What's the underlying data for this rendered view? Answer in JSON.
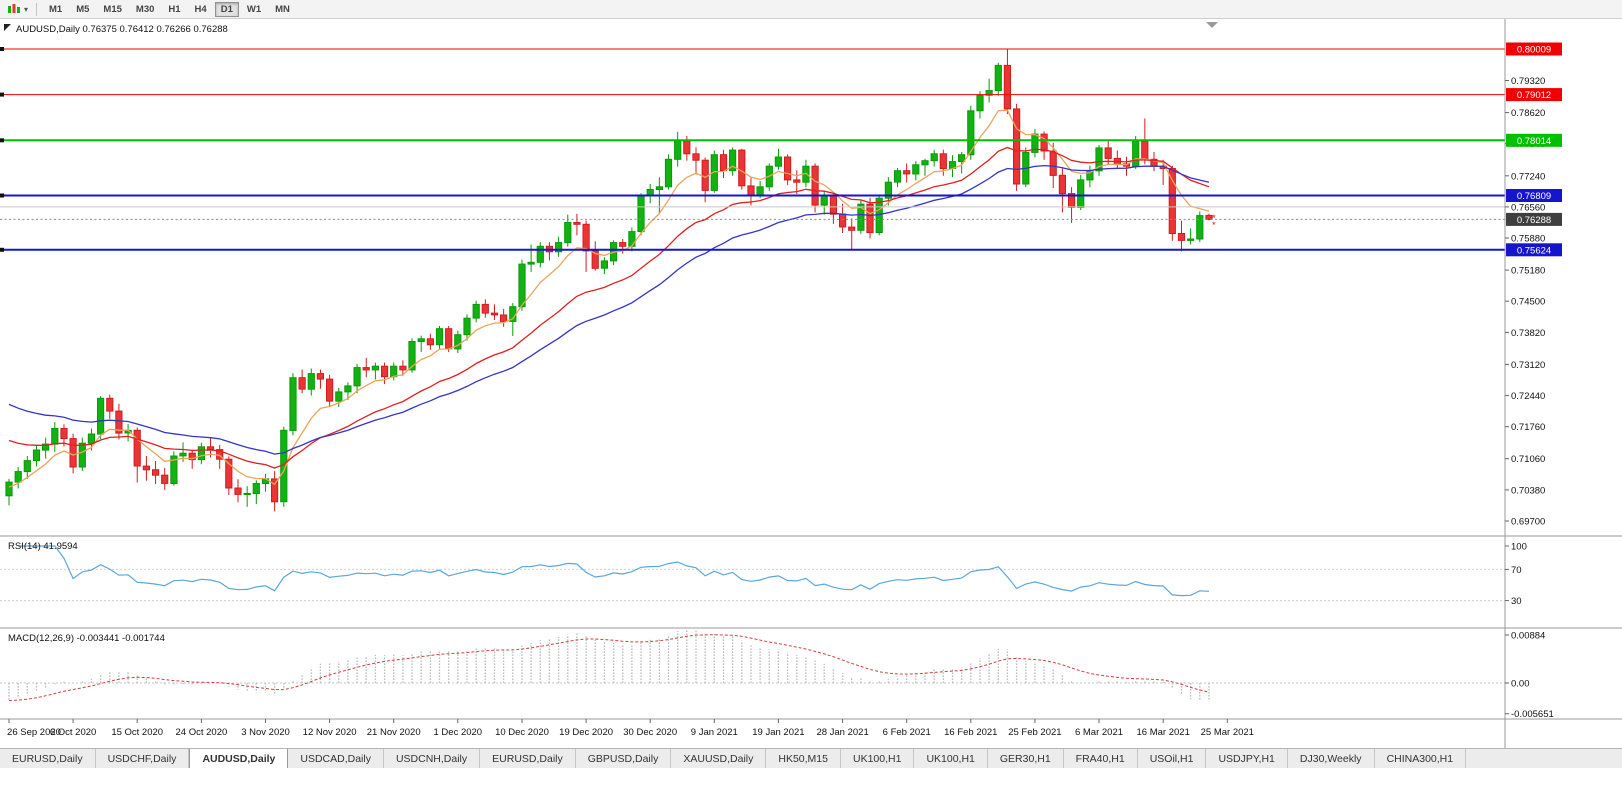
{
  "toolbar": {
    "caret_glyph": "▾",
    "timeframes": [
      "M1",
      "M5",
      "M15",
      "M30",
      "H1",
      "H4",
      "D1",
      "W1",
      "MN"
    ],
    "active_timeframe": "D1"
  },
  "chart_header": {
    "symbol_period": "AUDUSD,Daily",
    "ohlc": "0.76375 0.76412 0.76266 0.76288"
  },
  "colors": {
    "up": "#12b212",
    "up_border": "#089a08",
    "down": "#e93535",
    "down_border": "#cf1d1d",
    "ma_fast": "#eaa558",
    "ma_mid": "#e02020",
    "ma_slow": "#3434c8",
    "rsi": "#5aa7dc",
    "macd_hist": "#bdbdbd",
    "macd_signal": "#d04040",
    "red_line": "#f00000",
    "green_line": "#00c000",
    "blue_line": "#1515cc",
    "gray_line": "#c8c8c8",
    "badge_current": "#3f3f3f",
    "panel_sep": "#9a9a9a",
    "axis_text": "#111111",
    "bid_line": "#8a8a8a"
  },
  "chart_data": {
    "type": "candlestick",
    "symbol": "AUDUSD",
    "timeframe": "Daily",
    "current_ohlc": {
      "open": "0.76375",
      "high": "0.76412",
      "low": "0.76266",
      "close": "0.76288"
    },
    "price_ticks": [
      "0.79320",
      "0.78620",
      "0.77940",
      "0.77240",
      "0.76560",
      "0.75880",
      "0.75180",
      "0.74500",
      "0.73820",
      "0.73120",
      "0.72440",
      "0.71760",
      "0.71060",
      "0.70380",
      "0.69700"
    ],
    "date_labels": [
      "26 Sep 2020",
      "6 Oct 2020",
      "15 Oct 2020",
      "24 Oct 2020",
      "3 Nov 2020",
      "12 Nov 2020",
      "21 Nov 2020",
      "1 Dec 2020",
      "10 Dec 2020",
      "19 Dec 2020",
      "30 Dec 2020",
      "9 Jan 2021",
      "19 Jan 2021",
      "28 Jan 2021",
      "6 Feb 2021",
      "16 Feb 2021",
      "25 Feb 2021",
      "6 Mar 2021",
      "16 Mar 2021",
      "25 Mar 2021"
    ],
    "horizontal_lines": [
      {
        "label": "0.80009",
        "price": 0.80009,
        "color_key": "red_line",
        "width": 1
      },
      {
        "label": "0.79012",
        "price": 0.79012,
        "color_key": "red_line",
        "width": 1
      },
      {
        "label": "0.78014",
        "price": 0.78014,
        "color_key": "green_line",
        "width": 2
      },
      {
        "label": "0.76809",
        "price": 0.76809,
        "color_key": "blue_line",
        "width": 2
      },
      {
        "label": "0.75624",
        "price": 0.75624,
        "color_key": "blue_line",
        "width": 2
      },
      {
        "price": 0.7656,
        "color_key": "gray_line",
        "width": 1
      }
    ],
    "current_price": {
      "label": "0.76288",
      "price": 0.76288
    },
    "moving_averages": [
      {
        "period": 7,
        "seed": 0.704,
        "color_key": "ma_fast"
      },
      {
        "period": 21,
        "seed": 0.7155,
        "color_key": "ma_mid"
      },
      {
        "period": 34,
        "seed": 0.7235,
        "color_key": "ma_slow"
      }
    ],
    "rsi": {
      "name": "RSI(14)",
      "value_text": "41.9594",
      "period": 14,
      "scale_labels": [
        "100",
        "70",
        "30"
      ],
      "level_lines": [
        70,
        30
      ]
    },
    "macd": {
      "name": "MACD(12,26,9)",
      "values_text": "-0.003441 -0.001744",
      "fast": 12,
      "slow": 26,
      "signal": 9,
      "slow_seed": 0.709,
      "scale_labels": [
        "0.00884",
        "0.00",
        "-0.005651"
      ]
    },
    "candles": [
      [
        0.7025,
        0.7062,
        0.7004,
        0.7055
      ],
      [
        0.7055,
        0.7088,
        0.7041,
        0.7078
      ],
      [
        0.7078,
        0.7112,
        0.7062,
        0.7102
      ],
      [
        0.7102,
        0.7136,
        0.7089,
        0.7125
      ],
      [
        0.7125,
        0.7152,
        0.7106,
        0.7138
      ],
      [
        0.7138,
        0.7186,
        0.7121,
        0.7172
      ],
      [
        0.7172,
        0.7181,
        0.7133,
        0.715
      ],
      [
        0.715,
        0.7161,
        0.7074,
        0.7088
      ],
      [
        0.7088,
        0.7152,
        0.7079,
        0.714
      ],
      [
        0.714,
        0.7172,
        0.7124,
        0.716
      ],
      [
        0.716,
        0.7243,
        0.7149,
        0.7238
      ],
      [
        0.7238,
        0.7246,
        0.7193,
        0.721
      ],
      [
        0.721,
        0.7226,
        0.7148,
        0.7162
      ],
      [
        0.7162,
        0.7182,
        0.7144,
        0.7168
      ],
      [
        0.7168,
        0.7174,
        0.7054,
        0.709
      ],
      [
        0.709,
        0.7112,
        0.7058,
        0.7082
      ],
      [
        0.7082,
        0.7101,
        0.7051,
        0.707
      ],
      [
        0.707,
        0.7086,
        0.7038,
        0.7052
      ],
      [
        0.7052,
        0.7122,
        0.7047,
        0.7112
      ],
      [
        0.7112,
        0.7142,
        0.7099,
        0.7118
      ],
      [
        0.7118,
        0.7126,
        0.7084,
        0.7104
      ],
      [
        0.7104,
        0.7141,
        0.7094,
        0.7132
      ],
      [
        0.7132,
        0.7151,
        0.7109,
        0.7126
      ],
      [
        0.7126,
        0.7136,
        0.7084,
        0.7105
      ],
      [
        0.7105,
        0.7111,
        0.7027,
        0.7042
      ],
      [
        0.7042,
        0.7061,
        0.7011,
        0.7028
      ],
      [
        0.7028,
        0.7046,
        0.7001,
        0.703
      ],
      [
        0.703,
        0.7059,
        0.7007,
        0.7052
      ],
      [
        0.7052,
        0.7073,
        0.7034,
        0.7062
      ],
      [
        0.7062,
        0.7079,
        0.6991,
        0.7012
      ],
      [
        0.7012,
        0.7176,
        0.7001,
        0.7168
      ],
      [
        0.7168,
        0.7293,
        0.7157,
        0.7283
      ],
      [
        0.7283,
        0.7301,
        0.7249,
        0.7258
      ],
      [
        0.7258,
        0.7303,
        0.7244,
        0.7292
      ],
      [
        0.7292,
        0.7301,
        0.7259,
        0.728
      ],
      [
        0.728,
        0.7289,
        0.7221,
        0.7232
      ],
      [
        0.7232,
        0.7261,
        0.7219,
        0.7252
      ],
      [
        0.7252,
        0.7273,
        0.7234,
        0.7265
      ],
      [
        0.7265,
        0.7313,
        0.7249,
        0.7305
      ],
      [
        0.7305,
        0.7326,
        0.7284,
        0.73
      ],
      [
        0.73,
        0.7316,
        0.7279,
        0.7308
      ],
      [
        0.7308,
        0.7316,
        0.7269,
        0.7285
      ],
      [
        0.7285,
        0.7316,
        0.7277,
        0.7308
      ],
      [
        0.7308,
        0.7321,
        0.7287,
        0.73
      ],
      [
        0.73,
        0.7369,
        0.7294,
        0.7362
      ],
      [
        0.7362,
        0.7375,
        0.7339,
        0.7368
      ],
      [
        0.7368,
        0.7379,
        0.7344,
        0.7355
      ],
      [
        0.7355,
        0.7396,
        0.7344,
        0.739
      ],
      [
        0.739,
        0.7396,
        0.7339,
        0.7346
      ],
      [
        0.7346,
        0.7386,
        0.7337,
        0.7377
      ],
      [
        0.7377,
        0.7421,
        0.7364,
        0.7413
      ],
      [
        0.7413,
        0.7451,
        0.7404,
        0.7443
      ],
      [
        0.7443,
        0.7454,
        0.7414,
        0.7424
      ],
      [
        0.7424,
        0.7443,
        0.7409,
        0.742
      ],
      [
        0.742,
        0.7433,
        0.7394,
        0.7406
      ],
      [
        0.7406,
        0.7446,
        0.7374,
        0.7438
      ],
      [
        0.7438,
        0.7541,
        0.7429,
        0.7531
      ],
      [
        0.7531,
        0.7574,
        0.7514,
        0.7535
      ],
      [
        0.7535,
        0.7579,
        0.7524,
        0.757
      ],
      [
        0.757,
        0.7579,
        0.7539,
        0.7558
      ],
      [
        0.7558,
        0.7591,
        0.7547,
        0.7578
      ],
      [
        0.7578,
        0.7639,
        0.7569,
        0.7622
      ],
      [
        0.7622,
        0.7641,
        0.7594,
        0.7618
      ],
      [
        0.7618,
        0.7626,
        0.7514,
        0.756
      ],
      [
        0.756,
        0.7581,
        0.7517,
        0.7522
      ],
      [
        0.7522,
        0.7546,
        0.7509,
        0.7538
      ],
      [
        0.7538,
        0.7583,
        0.7529,
        0.7578
      ],
      [
        0.7578,
        0.7586,
        0.7554,
        0.757
      ],
      [
        0.757,
        0.7611,
        0.7559,
        0.7602
      ],
      [
        0.7602,
        0.7686,
        0.7594,
        0.768
      ],
      [
        0.768,
        0.7706,
        0.7664,
        0.7694
      ],
      [
        0.7694,
        0.7721,
        0.7642,
        0.77
      ],
      [
        0.77,
        0.7771,
        0.7694,
        0.776
      ],
      [
        0.776,
        0.782,
        0.7744,
        0.78
      ],
      [
        0.78,
        0.7811,
        0.7757,
        0.7772
      ],
      [
        0.7772,
        0.7786,
        0.7727,
        0.7758
      ],
      [
        0.7758,
        0.7764,
        0.7666,
        0.7692
      ],
      [
        0.7692,
        0.7779,
        0.7687,
        0.777
      ],
      [
        0.777,
        0.7781,
        0.7719,
        0.7735
      ],
      [
        0.7735,
        0.7786,
        0.7724,
        0.778
      ],
      [
        0.778,
        0.7783,
        0.7694,
        0.7702
      ],
      [
        0.7702,
        0.7721,
        0.7659,
        0.7682
      ],
      [
        0.7682,
        0.7713,
        0.7675,
        0.77
      ],
      [
        0.77,
        0.7751,
        0.7691,
        0.7745
      ],
      [
        0.7745,
        0.7783,
        0.7737,
        0.7765
      ],
      [
        0.7765,
        0.7771,
        0.7704,
        0.7715
      ],
      [
        0.7715,
        0.7736,
        0.7684,
        0.771
      ],
      [
        0.771,
        0.7759,
        0.7699,
        0.7745
      ],
      [
        0.7745,
        0.7751,
        0.7644,
        0.766
      ],
      [
        0.766,
        0.7691,
        0.7639,
        0.768
      ],
      [
        0.768,
        0.7687,
        0.7619,
        0.764
      ],
      [
        0.764,
        0.7663,
        0.7599,
        0.7612
      ],
      [
        0.7612,
        0.7631,
        0.7563,
        0.7605
      ],
      [
        0.7605,
        0.7671,
        0.7597,
        0.7662
      ],
      [
        0.7662,
        0.7676,
        0.7587,
        0.76
      ],
      [
        0.76,
        0.7681,
        0.7594,
        0.7675
      ],
      [
        0.7675,
        0.7721,
        0.7659,
        0.771
      ],
      [
        0.771,
        0.7741,
        0.7699,
        0.7735
      ],
      [
        0.7735,
        0.7751,
        0.7709,
        0.7728
      ],
      [
        0.7728,
        0.7756,
        0.7714,
        0.7748
      ],
      [
        0.7748,
        0.7761,
        0.7724,
        0.7757
      ],
      [
        0.7757,
        0.7781,
        0.7744,
        0.7772
      ],
      [
        0.7772,
        0.7781,
        0.7724,
        0.774
      ],
      [
        0.774,
        0.7769,
        0.7721,
        0.7755
      ],
      [
        0.7755,
        0.7776,
        0.7729,
        0.777
      ],
      [
        0.777,
        0.7877,
        0.7759,
        0.7866
      ],
      [
        0.7866,
        0.7909,
        0.7849,
        0.79
      ],
      [
        0.79,
        0.7936,
        0.7884,
        0.791
      ],
      [
        0.791,
        0.7971,
        0.7899,
        0.7965
      ],
      [
        0.7965,
        0.8001,
        0.7859,
        0.787
      ],
      [
        0.787,
        0.7881,
        0.7691,
        0.7706
      ],
      [
        0.7706,
        0.7786,
        0.7699,
        0.7775
      ],
      [
        0.7775,
        0.7826,
        0.7764,
        0.7815
      ],
      [
        0.7815,
        0.7821,
        0.7759,
        0.7778
      ],
      [
        0.7778,
        0.7796,
        0.7697,
        0.7725
      ],
      [
        0.7725,
        0.7741,
        0.7644,
        0.7685
      ],
      [
        0.7685,
        0.7699,
        0.7621,
        0.7655
      ],
      [
        0.7655,
        0.7726,
        0.7649,
        0.7715
      ],
      [
        0.7715,
        0.7746,
        0.7699,
        0.7735
      ],
      [
        0.7735,
        0.7791,
        0.7724,
        0.7785
      ],
      [
        0.7785,
        0.7801,
        0.7749,
        0.7762
      ],
      [
        0.7762,
        0.7779,
        0.7739,
        0.775
      ],
      [
        0.775,
        0.7766,
        0.7724,
        0.7745
      ],
      [
        0.7745,
        0.7811,
        0.7739,
        0.78
      ],
      [
        0.78,
        0.7849,
        0.7749,
        0.776
      ],
      [
        0.776,
        0.7776,
        0.7734,
        0.7745
      ],
      [
        0.7745,
        0.7759,
        0.7704,
        0.774
      ],
      [
        0.774,
        0.7746,
        0.7582,
        0.7598
      ],
      [
        0.7598,
        0.7626,
        0.7559,
        0.7583
      ],
      [
        0.7583,
        0.7609,
        0.7574,
        0.7586
      ],
      [
        0.7586,
        0.7646,
        0.7579,
        0.7637
      ],
      [
        0.76375,
        0.76412,
        0.76266,
        0.76288
      ]
    ]
  },
  "tabs": {
    "active_index": 2,
    "items": [
      "EURUSD,Daily",
      "USDCHF,Daily",
      "AUDUSD,Daily",
      "USDCAD,Daily",
      "USDCNH,Daily",
      "EURUSD,Daily",
      "GBPUSD,Daily",
      "XAUUSD,Daily",
      "HK50,M15",
      "UK100,H1",
      "UK100,H1",
      "GER30,H1",
      "FRA40,H1",
      "USOil,H1",
      "USDJPY,H1",
      "DJ30,Weekly",
      "CHINA300,H1"
    ]
  }
}
